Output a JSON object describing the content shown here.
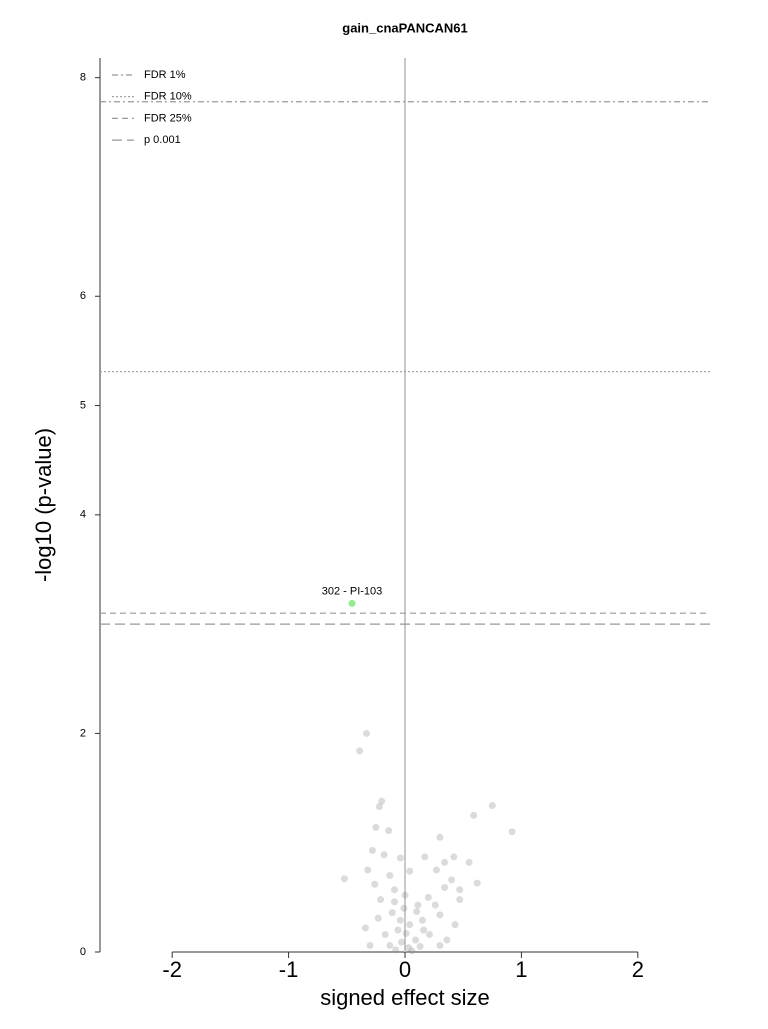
{
  "chart_data": {
    "type": "scatter",
    "title": "gain_cnaPANCAN61",
    "xlabel": "signed effect size",
    "ylabel": "-log10 (p-value)",
    "xlim": [
      -2.62,
      2.62
    ],
    "ylim": [
      0,
      8.18
    ],
    "xticks": [
      -2,
      -1,
      0,
      1,
      2
    ],
    "yticks": [
      0,
      2,
      4,
      5,
      6,
      8
    ],
    "vline": 0,
    "hlines": [
      {
        "label": "FDR 1%",
        "y": 7.78,
        "dash": "6 3 2 3"
      },
      {
        "label": "FDR 10%",
        "y": 5.31,
        "dash": "2 2"
      },
      {
        "label": "FDR 25%",
        "y": 3.1,
        "dash": "6 4"
      },
      {
        "label": "p 0.001",
        "y": 3.0,
        "dash": "10 5"
      }
    ],
    "points": {
      "color": "#888888",
      "x": [
        -0.33,
        -0.39,
        0.75,
        -0.2,
        -0.22,
        0.59,
        0.92,
        0.3,
        -0.25,
        -0.14,
        -0.52,
        0.62,
        0.55,
        0.42,
        0.17,
        -0.04,
        -0.18,
        -0.28,
        0.34,
        0.27,
        0.04,
        -0.13,
        -0.26,
        0.4,
        0.47,
        -0.09,
        -0.21,
        0.2,
        0.11,
        -0.01,
        -0.11,
        -0.23,
        0.3,
        0.43,
        0.15,
        0.04,
        -0.06,
        -0.17,
        0.21,
        0.09,
        -0.03,
        -0.13,
        0.13,
        0.03,
        -0.08,
        0.06,
        0.3,
        -0.3,
        -0.34,
        0.36,
        0.16,
        -0.04,
        0.01,
        0.1,
        -0.09,
        0.26,
        0.0,
        -0.32,
        0.34,
        0.47
      ],
      "y": [
        2.0,
        1.84,
        1.34,
        1.38,
        1.33,
        1.25,
        1.1,
        1.05,
        1.14,
        1.11,
        0.67,
        0.63,
        0.82,
        0.87,
        0.87,
        0.86,
        0.89,
        0.93,
        0.82,
        0.75,
        0.74,
        0.7,
        0.62,
        0.66,
        0.57,
        0.57,
        0.48,
        0.5,
        0.43,
        0.4,
        0.36,
        0.31,
        0.34,
        0.25,
        0.29,
        0.25,
        0.2,
        0.16,
        0.16,
        0.11,
        0.09,
        0.06,
        0.05,
        0.04,
        0.02,
        0.01,
        0.06,
        0.06,
        0.22,
        0.11,
        0.2,
        0.29,
        0.17,
        0.37,
        0.46,
        0.43,
        0.52,
        0.75,
        0.59,
        0.48
      ]
    },
    "highlight": {
      "x": -0.455,
      "y": 3.19,
      "label": "302 - PI-103",
      "color": "#90ee90"
    }
  }
}
